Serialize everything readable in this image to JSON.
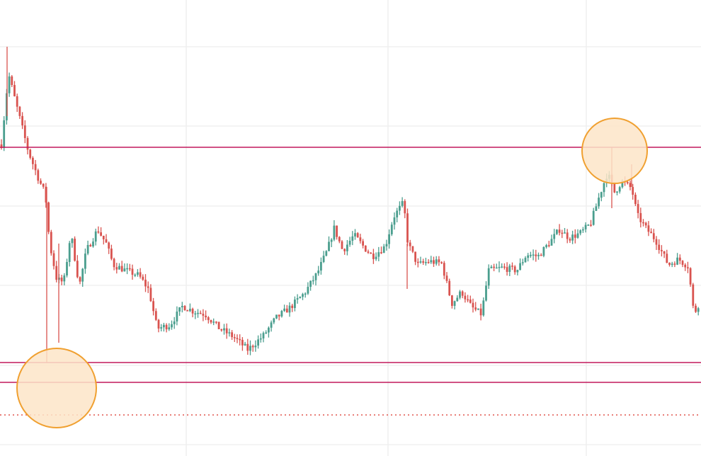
{
  "chart_data": {
    "type": "candlestick",
    "title": "",
    "xlabel": "",
    "ylabel": "",
    "ylim": [
      0,
      644
    ],
    "grid": true,
    "colors": {
      "up": "#4a9e8e",
      "down": "#d9534f",
      "level_line": "#c2185b",
      "dotted_line": "#e0574f",
      "marker_fill": "#fde5c8",
      "marker_stroke": "#f0a030",
      "grid": "#eeeeee"
    },
    "levels": [
      436,
      132,
      104
    ],
    "dotted_level": 58,
    "markers": [
      {
        "name": "low-marker",
        "value": 96
      },
      {
        "name": "high-marker",
        "value": 431
      }
    ],
    "close_path": [
      [
        2,
        440
      ],
      [
        12,
        540
      ],
      [
        22,
        500
      ],
      [
        40,
        430
      ],
      [
        55,
        390
      ],
      [
        64,
        370
      ],
      [
        70,
        300
      ],
      [
        80,
        250
      ],
      [
        90,
        245
      ],
      [
        100,
        315
      ],
      [
        112,
        240
      ],
      [
        122,
        290
      ],
      [
        138,
        320
      ],
      [
        150,
        300
      ],
      [
        160,
        270
      ],
      [
        178,
        262
      ],
      [
        196,
        255
      ],
      [
        210,
        235
      ],
      [
        222,
        180
      ],
      [
        240,
        185
      ],
      [
        258,
        212
      ],
      [
        272,
        205
      ],
      [
        290,
        200
      ],
      [
        310,
        180
      ],
      [
        330,
        168
      ],
      [
        350,
        150
      ],
      [
        372,
        170
      ],
      [
        390,
        195
      ],
      [
        410,
        210
      ],
      [
        430,
        230
      ],
      [
        448,
        258
      ],
      [
        462,
        290
      ],
      [
        472,
        322
      ],
      [
        484,
        290
      ],
      [
        500,
        312
      ],
      [
        514,
        295
      ],
      [
        526,
        282
      ],
      [
        544,
        296
      ],
      [
        556,
        338
      ],
      [
        570,
        358
      ],
      [
        576,
        300
      ],
      [
        590,
        270
      ],
      [
        606,
        275
      ],
      [
        624,
        272
      ],
      [
        638,
        215
      ],
      [
        652,
        232
      ],
      [
        666,
        210
      ],
      [
        680,
        200
      ],
      [
        690,
        262
      ],
      [
        710,
        266
      ],
      [
        730,
        262
      ],
      [
        744,
        285
      ],
      [
        760,
        282
      ],
      [
        778,
        304
      ],
      [
        790,
        320
      ],
      [
        804,
        308
      ],
      [
        820,
        315
      ],
      [
        834,
        328
      ],
      [
        848,
        372
      ],
      [
        858,
        400
      ],
      [
        868,
        372
      ],
      [
        878,
        388
      ],
      [
        892,
        378
      ],
      [
        900,
        340
      ],
      [
        912,
        322
      ],
      [
        926,
        305
      ],
      [
        944,
        270
      ],
      [
        958,
        278
      ],
      [
        972,
        268
      ],
      [
        980,
        200
      ],
      [
        990,
        222
      ]
    ]
  }
}
